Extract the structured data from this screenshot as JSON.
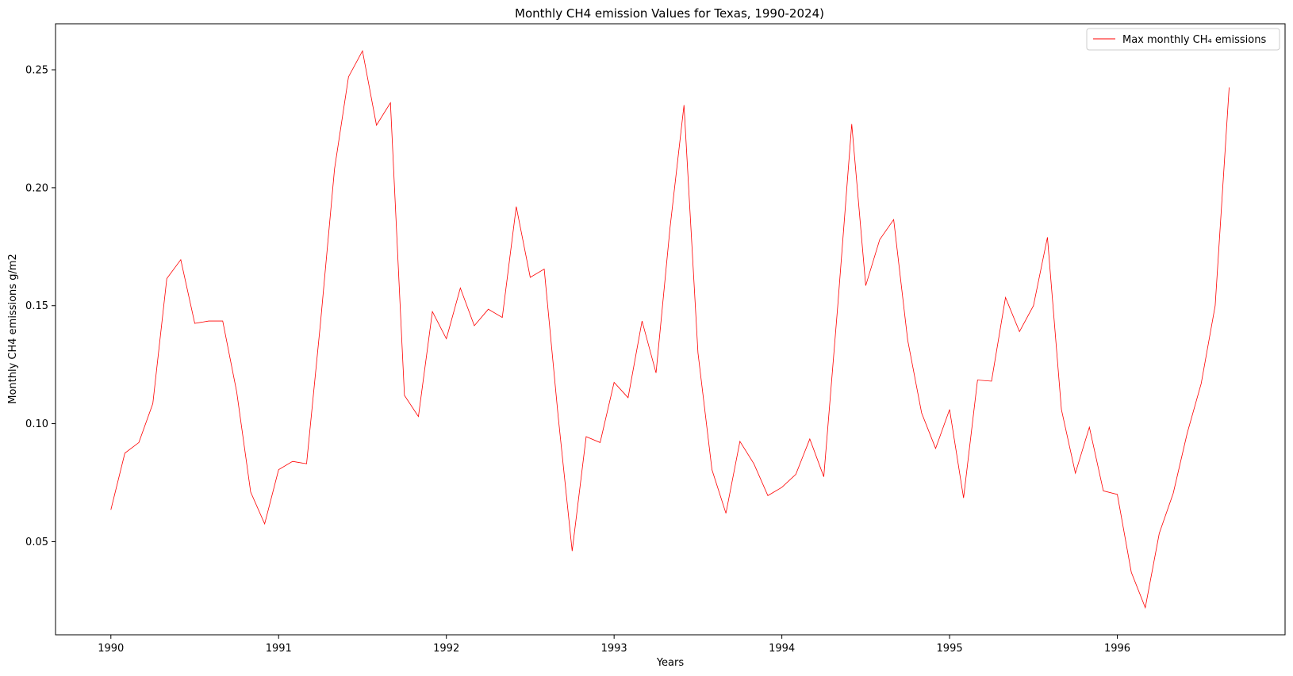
{
  "chart_data": {
    "type": "line",
    "title": "Monthly CH4 emission Values for Texas, 1990-2024)",
    "xlabel": "Years",
    "ylabel": "Monthly CH4 emissions g/m2",
    "xlim": [
      1989.67,
      1997.0
    ],
    "ylim": [
      0.0105,
      0.2695
    ],
    "xticks": [
      1990,
      1991,
      1992,
      1993,
      1994,
      1995,
      1996
    ],
    "xtick_labels": [
      "1990",
      "1991",
      "1992",
      "1993",
      "1994",
      "1995",
      "1996"
    ],
    "yticks": [
      0.05,
      0.1,
      0.15,
      0.2,
      0.25
    ],
    "ytick_labels": [
      "0.05",
      "0.10",
      "0.15",
      "0.20",
      "0.25"
    ],
    "grid": false,
    "legend": {
      "position": "top-right"
    },
    "series": [
      {
        "name": "Max monthly CH₄ emissions",
        "color": "#ff0000",
        "x_start": 1990,
        "x_step_months": 1,
        "values": [
          0.0635,
          0.0875,
          0.092,
          0.1085,
          0.1615,
          0.1695,
          0.1425,
          0.1435,
          0.1435,
          0.1135,
          0.071,
          0.0575,
          0.0805,
          0.084,
          0.083,
          0.143,
          0.208,
          0.247,
          0.258,
          0.2265,
          0.236,
          0.112,
          0.103,
          0.1475,
          0.136,
          0.1575,
          0.1415,
          0.1485,
          0.145,
          0.192,
          0.162,
          0.1655,
          0.103,
          0.046,
          0.0945,
          0.092,
          0.1175,
          0.111,
          0.1435,
          0.1215,
          0.183,
          0.235,
          0.13,
          0.0805,
          0.062,
          0.0925,
          0.083,
          0.0695,
          0.073,
          0.0785,
          0.0935,
          0.0775,
          0.15,
          0.227,
          0.1585,
          0.178,
          0.1865,
          0.1355,
          0.1045,
          0.0895,
          0.106,
          0.0685,
          0.1185,
          0.118,
          0.1535,
          0.139,
          0.15,
          0.179,
          0.106,
          0.079,
          0.0985,
          0.0715,
          0.07,
          0.037,
          0.022,
          0.0535,
          0.0705,
          0.096,
          0.117,
          0.15,
          0.2425
        ]
      }
    ]
  }
}
